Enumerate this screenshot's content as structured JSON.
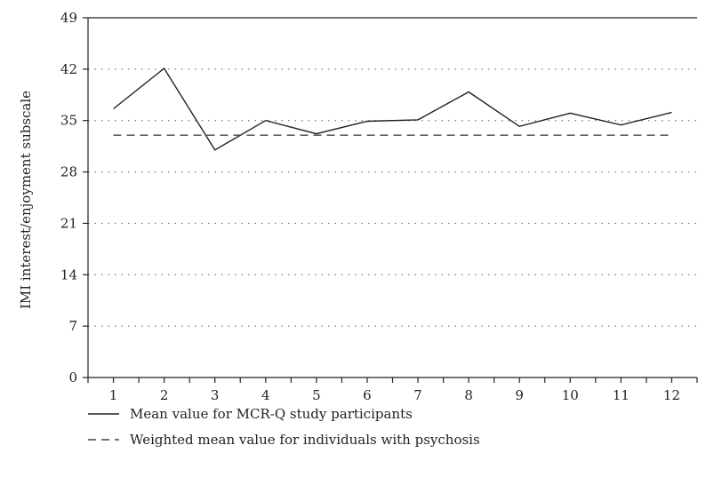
{
  "chart_data": {
    "type": "line",
    "title": "",
    "xlabel": "",
    "ylabel": "IMI interest/enjoyment subscale",
    "x": [
      1,
      2,
      3,
      4,
      5,
      6,
      7,
      8,
      9,
      10,
      11,
      12
    ],
    "xticks": [
      "1",
      "2",
      "3",
      "4",
      "5",
      "6",
      "7",
      "8",
      "9",
      "10",
      "11",
      "12"
    ],
    "ylim": [
      0,
      49
    ],
    "yticks": [
      0,
      7,
      14,
      21,
      28,
      35,
      42,
      49
    ],
    "grid": "horizontal dotted",
    "legend_position": "bottom-left",
    "series": [
      {
        "name": "Mean value for MCR-Q study participants",
        "style": "solid",
        "color": "#222222",
        "values": [
          36.6,
          42.1,
          31.0,
          35.0,
          33.2,
          34.9,
          35.1,
          38.9,
          34.2,
          36.0,
          34.4,
          36.1
        ]
      },
      {
        "name": "Weighted mean value for individuals with psychosis",
        "style": "dashed",
        "color": "#444444",
        "values": [
          33.0,
          33.0,
          33.0,
          33.0,
          33.0,
          33.0,
          33.0,
          33.0,
          33.0,
          33.0,
          33.0,
          33.0
        ]
      }
    ]
  }
}
